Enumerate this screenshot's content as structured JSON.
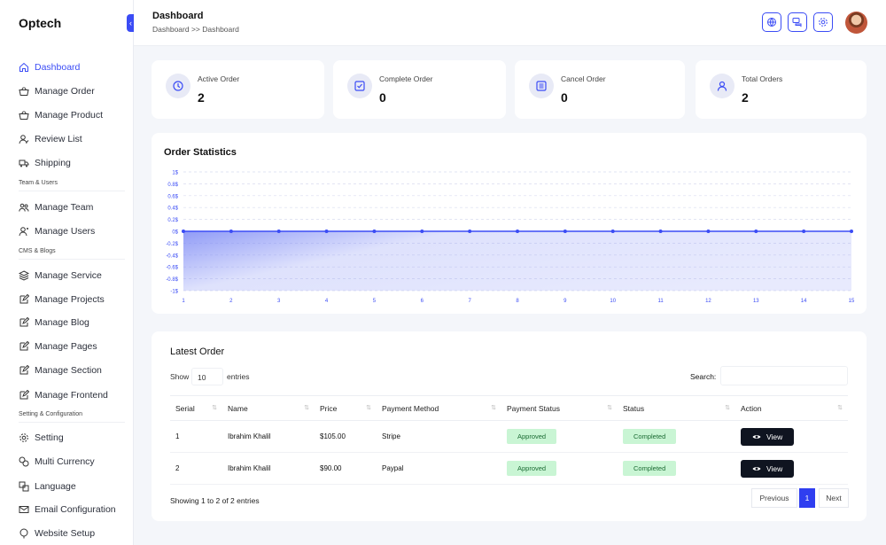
{
  "brand": "Optech",
  "header": {
    "title": "Dashboard",
    "breadcrumb": "Dashboard >> Dashboard"
  },
  "sidebar": {
    "items": [
      {
        "label": "Dashboard",
        "icon": "home-icon"
      },
      {
        "label": "Manage Order",
        "icon": "basket-icon"
      },
      {
        "label": "Manage Product",
        "icon": "basket-icon"
      },
      {
        "label": "Review List",
        "icon": "user-review-icon"
      },
      {
        "label": "Shipping",
        "icon": "truck-icon"
      },
      {
        "label": "Manage Team",
        "icon": "team-icon"
      },
      {
        "label": "Manage Users",
        "icon": "users-icon"
      },
      {
        "label": "Manage Service",
        "icon": "layers-icon"
      },
      {
        "label": "Manage Projects",
        "icon": "edit-icon"
      },
      {
        "label": "Manage Blog",
        "icon": "edit-icon"
      },
      {
        "label": "Manage Pages",
        "icon": "edit-icon"
      },
      {
        "label": "Manage Section",
        "icon": "edit-icon"
      },
      {
        "label": "Manage Frontend",
        "icon": "edit-icon"
      },
      {
        "label": "Setting",
        "icon": "gear-icon"
      },
      {
        "label": "Multi Currency",
        "icon": "currency-icon"
      },
      {
        "label": "Language",
        "icon": "language-icon"
      },
      {
        "label": "Email Configuration",
        "icon": "email-icon"
      },
      {
        "label": "Website Setup",
        "icon": "setup-icon"
      }
    ],
    "groups": [
      "Team & Users",
      "CMS & Blogs",
      "Setting & Configuration"
    ]
  },
  "stats": [
    {
      "label": "Active Order",
      "value": "2",
      "icon": "clock-icon"
    },
    {
      "label": "Complete Order",
      "value": "0",
      "icon": "badge-check-icon"
    },
    {
      "label": "Cancel Order",
      "value": "0",
      "icon": "list-icon"
    },
    {
      "label": "Total Orders",
      "value": "2",
      "icon": "user-icon"
    }
  ],
  "chart_data": {
    "type": "area",
    "title": "Order Statistics",
    "x": [
      1,
      2,
      3,
      4,
      5,
      6,
      7,
      8,
      9,
      10,
      11,
      12,
      13,
      14,
      15
    ],
    "series": [
      {
        "values": [
          0,
          0,
          0,
          0,
          0,
          0,
          0,
          0,
          0,
          0,
          0,
          0,
          0,
          0,
          0
        ]
      }
    ],
    "ylim": [
      -1,
      1
    ],
    "y_ticks": [
      "1$",
      "0.8$",
      "0.6$",
      "0.4$",
      "0.2$",
      "0$",
      "-0.2$",
      "-0.4$",
      "-0.6$",
      "-0.8$",
      "-1$"
    ],
    "grid": true,
    "colors": {
      "line": "#3b4cf5",
      "fill": "#7d8af5"
    }
  },
  "orders": {
    "title": "Latest Order",
    "show_label": "Show",
    "entries_value": "10",
    "entries_label": "entries",
    "search_label": "Search:",
    "columns": [
      "Serial",
      "Name",
      "Price",
      "Payment Method",
      "Payment Status",
      "Status",
      "Action"
    ],
    "rows": [
      {
        "serial": "1",
        "name": "Ibrahim Khalil",
        "price": "$105.00",
        "method": "Stripe",
        "payment_status": "Approved",
        "status": "Completed",
        "action": "View"
      },
      {
        "serial": "2",
        "name": "Ibrahim Khalil",
        "price": "$90.00",
        "method": "Paypal",
        "payment_status": "Approved",
        "status": "Completed",
        "action": "View"
      }
    ],
    "showing": "Showing 1 to 2 of 2 entries",
    "pagination": {
      "previous": "Previous",
      "page": "1",
      "next": "Next"
    }
  },
  "colors": {
    "accent": "#3b4cf5",
    "approved_bg": "#c9f5d4",
    "dark_button": "#0f1420"
  }
}
